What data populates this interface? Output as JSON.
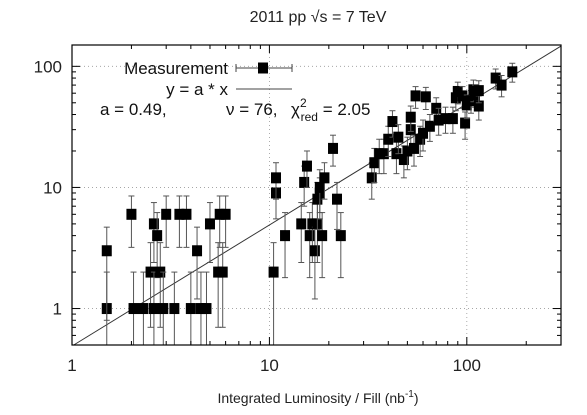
{
  "chart_data": {
    "type": "scatter",
    "title": "2011 pp √s = 7 TeV",
    "xlabel": "Integrated Luminosity / Fill (nb",
    "xlabel_sup": "-1",
    "xlabel_end": ")",
    "xscale": "log",
    "yscale": "log",
    "xlim": [
      1,
      300
    ],
    "ylim": [
      0.5,
      150
    ],
    "grid": "dotted, at decades",
    "x_ticks": [
      {
        "value": 1,
        "label": "1"
      },
      {
        "value": 10,
        "label": "10"
      },
      {
        "value": 100,
        "label": "100"
      }
    ],
    "y_ticks": [
      {
        "value": 1,
        "label": "1"
      },
      {
        "value": 10,
        "label": "10"
      },
      {
        "value": 100,
        "label": "100"
      }
    ],
    "legend": {
      "position": "top-left",
      "measurement_label": "Measurement",
      "fit_label": "y = a * x"
    },
    "fit_annotation": {
      "a_text": "a = 0.49,",
      "nu_text": "ν = 76,",
      "chi_text": "χ",
      "chi_sup": "2",
      "chi_sub": "red",
      "chi_value": " = 2.05"
    },
    "fit": {
      "type": "linear",
      "slope": 0.49
    },
    "series": [
      {
        "name": "Measurement",
        "points": [
          {
            "x": 1.5,
            "y": 1,
            "lo": 0.5,
            "hi": 2.0
          },
          {
            "x": 1.5,
            "y": 3,
            "lo": 0.8,
            "hi": 4.7
          },
          {
            "x": 2.0,
            "y": 6,
            "lo": 3.2,
            "hi": 8.5
          },
          {
            "x": 2.05,
            "y": 1,
            "lo": 0.5,
            "hi": 2.0
          },
          {
            "x": 2.3,
            "y": 1,
            "lo": 0.5,
            "hi": 2.0
          },
          {
            "x": 2.5,
            "y": 2,
            "lo": 0.7,
            "hi": 3.5
          },
          {
            "x": 2.6,
            "y": 1,
            "lo": 0.5,
            "hi": 2.0
          },
          {
            "x": 2.6,
            "y": 5,
            "lo": 2.4,
            "hi": 7.5
          },
          {
            "x": 2.7,
            "y": 4,
            "lo": 1.8,
            "hi": 6.2
          },
          {
            "x": 2.8,
            "y": 2,
            "lo": 0.7,
            "hi": 3.5
          },
          {
            "x": 2.9,
            "y": 1,
            "lo": 0.5,
            "hi": 2.0
          },
          {
            "x": 3.0,
            "y": 6,
            "lo": 3.2,
            "hi": 8.5
          },
          {
            "x": 3.3,
            "y": 1,
            "lo": 0.5,
            "hi": 2.0
          },
          {
            "x": 3.5,
            "y": 6,
            "lo": 3.2,
            "hi": 8.5
          },
          {
            "x": 3.8,
            "y": 6,
            "lo": 3.2,
            "hi": 8.5
          },
          {
            "x": 4.0,
            "y": 1,
            "lo": 0.5,
            "hi": 2.0
          },
          {
            "x": 4.3,
            "y": 3,
            "lo": 1.2,
            "hi": 4.7
          },
          {
            "x": 4.5,
            "y": 1,
            "lo": 0.5,
            "hi": 2.0
          },
          {
            "x": 4.8,
            "y": 1,
            "lo": 0.5,
            "hi": 2.0
          },
          {
            "x": 5.0,
            "y": 5,
            "lo": 2.4,
            "hi": 7.5
          },
          {
            "x": 5.5,
            "y": 2,
            "lo": 0.7,
            "hi": 3.5
          },
          {
            "x": 5.6,
            "y": 6,
            "lo": 3.2,
            "hi": 8.5
          },
          {
            "x": 5.8,
            "y": 2,
            "lo": 0.7,
            "hi": 3.5
          },
          {
            "x": 6.0,
            "y": 6,
            "lo": 3.2,
            "hi": 8.5
          },
          {
            "x": 10.5,
            "y": 2,
            "lo": 0.5,
            "hi": 3.5
          },
          {
            "x": 10.8,
            "y": 9,
            "lo": 5.5,
            "hi": 12
          },
          {
            "x": 10.8,
            "y": 12,
            "lo": 8,
            "hi": 16
          },
          {
            "x": 12.0,
            "y": 4,
            "lo": 1.8,
            "hi": 6.2
          },
          {
            "x": 14.5,
            "y": 5,
            "lo": 2.4,
            "hi": 7.5
          },
          {
            "x": 15.0,
            "y": 11,
            "lo": 7,
            "hi": 15
          },
          {
            "x": 15.5,
            "y": 15,
            "lo": 10,
            "hi": 20
          },
          {
            "x": 16.0,
            "y": 4,
            "lo": 1.8,
            "hi": 6.2
          },
          {
            "x": 16.5,
            "y": 5,
            "lo": 2.4,
            "hi": 7.5
          },
          {
            "x": 17.0,
            "y": 3,
            "lo": 1.2,
            "hi": 4.7
          },
          {
            "x": 17.5,
            "y": 5,
            "lo": 2.4,
            "hi": 7.5
          },
          {
            "x": 17.5,
            "y": 8,
            "lo": 4.5,
            "hi": 11
          },
          {
            "x": 18.0,
            "y": 9,
            "lo": 5.5,
            "hi": 12
          },
          {
            "x": 18.0,
            "y": 10,
            "lo": 6.2,
            "hi": 14
          },
          {
            "x": 18.5,
            "y": 4,
            "lo": 1.8,
            "hi": 6.2
          },
          {
            "x": 19.0,
            "y": 12,
            "lo": 8,
            "hi": 16
          },
          {
            "x": 21.0,
            "y": 21,
            "lo": 15,
            "hi": 27
          },
          {
            "x": 22.0,
            "y": 8,
            "lo": 4.5,
            "hi": 11
          },
          {
            "x": 23.0,
            "y": 4,
            "lo": 1.8,
            "hi": 6.2
          },
          {
            "x": 33.0,
            "y": 12,
            "lo": 8,
            "hi": 16
          },
          {
            "x": 34.0,
            "y": 16,
            "lo": 11,
            "hi": 21
          },
          {
            "x": 36.0,
            "y": 19,
            "lo": 13,
            "hi": 25
          },
          {
            "x": 38.0,
            "y": 19,
            "lo": 13,
            "hi": 25
          },
          {
            "x": 40.0,
            "y": 25,
            "lo": 18,
            "hi": 32
          },
          {
            "x": 42.0,
            "y": 35,
            "lo": 26,
            "hi": 43
          },
          {
            "x": 44.0,
            "y": 19,
            "lo": 13,
            "hi": 25
          },
          {
            "x": 45.0,
            "y": 26,
            "lo": 19,
            "hi": 33
          },
          {
            "x": 48.0,
            "y": 17,
            "lo": 12,
            "hi": 22
          },
          {
            "x": 50.0,
            "y": 20,
            "lo": 14,
            "hi": 26
          },
          {
            "x": 52.0,
            "y": 30,
            "lo": 22,
            "hi": 38
          },
          {
            "x": 52.0,
            "y": 38,
            "lo": 29,
            "hi": 47
          },
          {
            "x": 54.0,
            "y": 21,
            "lo": 15,
            "hi": 27
          },
          {
            "x": 55.0,
            "y": 57,
            "lo": 45,
            "hi": 68
          },
          {
            "x": 58.0,
            "y": 25,
            "lo": 18,
            "hi": 32
          },
          {
            "x": 60.0,
            "y": 28,
            "lo": 20,
            "hi": 36
          },
          {
            "x": 62.0,
            "y": 56,
            "lo": 44,
            "hi": 67
          },
          {
            "x": 65.0,
            "y": 32,
            "lo": 24,
            "hi": 40
          },
          {
            "x": 70.0,
            "y": 45,
            "lo": 35,
            "hi": 55
          },
          {
            "x": 72.0,
            "y": 36,
            "lo": 27,
            "hi": 45
          },
          {
            "x": 78.0,
            "y": 37,
            "lo": 28,
            "hi": 46
          },
          {
            "x": 85.0,
            "y": 37,
            "lo": 28,
            "hi": 46
          },
          {
            "x": 88.0,
            "y": 55,
            "lo": 43,
            "hi": 66
          },
          {
            "x": 90.0,
            "y": 62,
            "lo": 49,
            "hi": 74
          },
          {
            "x": 95.0,
            "y": 57,
            "lo": 45,
            "hi": 68
          },
          {
            "x": 98.0,
            "y": 34,
            "lo": 25,
            "hi": 42
          },
          {
            "x": 100.0,
            "y": 48,
            "lo": 37,
            "hi": 58
          },
          {
            "x": 105.0,
            "y": 52,
            "lo": 41,
            "hi": 63
          },
          {
            "x": 108.0,
            "y": 64,
            "lo": 51,
            "hi": 77
          },
          {
            "x": 110.0,
            "y": 58,
            "lo": 46,
            "hi": 70
          },
          {
            "x": 115.0,
            "y": 47,
            "lo": 36,
            "hi": 57
          },
          {
            "x": 115.0,
            "y": 63,
            "lo": 50,
            "hi": 76
          },
          {
            "x": 140.0,
            "y": 80,
            "lo": 65,
            "hi": 95
          },
          {
            "x": 150.0,
            "y": 70,
            "lo": 56,
            "hi": 84
          },
          {
            "x": 170.0,
            "y": 90,
            "lo": 74,
            "hi": 106
          }
        ]
      }
    ]
  }
}
